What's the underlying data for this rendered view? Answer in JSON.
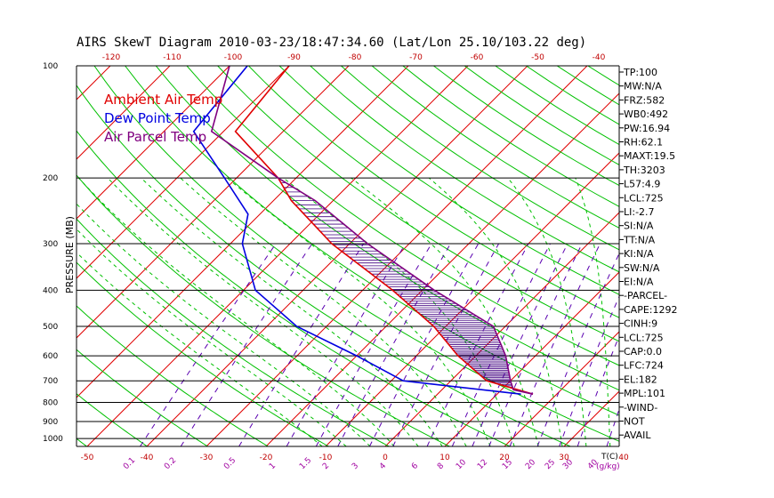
{
  "chart_data": {
    "type": "line",
    "title": "AIRS SkewT Diagram 2010-03-23/18:47:34.60 (Lat/Lon 25.10/103.22 deg)",
    "ylabel": "PRESSURE (MB)",
    "xlabel": "T(C)",
    "mixing_ratio_unit": "(g/kg)",
    "pressure_ticks": [
      100,
      200,
      300,
      400,
      500,
      600,
      700,
      800,
      900,
      1000
    ],
    "bottom_temp_ticks": [
      -50,
      -40,
      -30,
      -20,
      -10,
      0,
      10,
      20,
      30,
      40
    ],
    "top_temp_ticks": [
      -120,
      -110,
      -100,
      -90,
      -80,
      -70,
      -60,
      -50,
      -40
    ],
    "mixing_ratio_ticks": [
      "0.1",
      "0.2",
      "0.5",
      "1",
      "1.5",
      "2",
      "3",
      "4",
      "6",
      "8",
      "10",
      "12",
      "15",
      "20",
      "25",
      "30",
      "40"
    ],
    "legend": [
      {
        "label": "Ambient Air Temp",
        "color": "#e00000"
      },
      {
        "label": "Dew Point Temp",
        "color": "#0000e0"
      },
      {
        "label": "Air Parcel Temp",
        "color": "#800080"
      }
    ],
    "series": [
      {
        "name": "Ambient Air Temp",
        "color": "#e00000",
        "points": [
          [
            100,
            -80
          ],
          [
            150,
            -78
          ],
          [
            200,
            -63
          ],
          [
            230,
            -57
          ],
          [
            300,
            -43
          ],
          [
            400,
            -25
          ],
          [
            500,
            -12
          ],
          [
            600,
            -3
          ],
          [
            700,
            6
          ],
          [
            760,
            16
          ]
        ]
      },
      {
        "name": "Dew Point Temp",
        "color": "#0000e0",
        "points": [
          [
            100,
            -87
          ],
          [
            150,
            -85
          ],
          [
            200,
            -72
          ],
          [
            250,
            -62
          ],
          [
            300,
            -58
          ],
          [
            400,
            -48
          ],
          [
            500,
            -35
          ],
          [
            600,
            -20
          ],
          [
            700,
            -8
          ],
          [
            760,
            14
          ]
        ]
      },
      {
        "name": "Air Parcel Temp",
        "color": "#800080",
        "points": [
          [
            100,
            -90
          ],
          [
            150,
            -82
          ],
          [
            200,
            -63
          ],
          [
            230,
            -53
          ],
          [
            300,
            -37
          ],
          [
            400,
            -18
          ],
          [
            500,
            -2
          ],
          [
            600,
            5
          ],
          [
            700,
            10
          ],
          [
            740,
            12
          ],
          [
            760,
            16
          ]
        ]
      }
    ]
  },
  "sidebar": {
    "lines": [
      "TP:100",
      "MW:N/A",
      "FRZ:582",
      "WB0:492",
      "PW:16.94",
      "RH:62.1",
      "MAXT:19.5",
      "TH:3203",
      "L57:4.9",
      "LCL:725",
      "LI:-2.7",
      "SI:N/A",
      "TT:N/A",
      "KI:N/A",
      "SW:N/A",
      "EI:N/A",
      "-PARCEL-",
      "CAPE:1292",
      "CINH:9",
      "LCL:725",
      "CAP:0.0",
      "LFC:724",
      "EL:182",
      "MPL:101",
      "-WIND-",
      "NOT",
      "AVAIL"
    ]
  },
  "colors": {
    "isotherm": "#e00000",
    "dry_adiabat": "#00c000",
    "moist_adiabat": "#00c000",
    "mixing_ratio": "#5a00b0",
    "isobar": "#000000",
    "hatch": "#400080"
  }
}
